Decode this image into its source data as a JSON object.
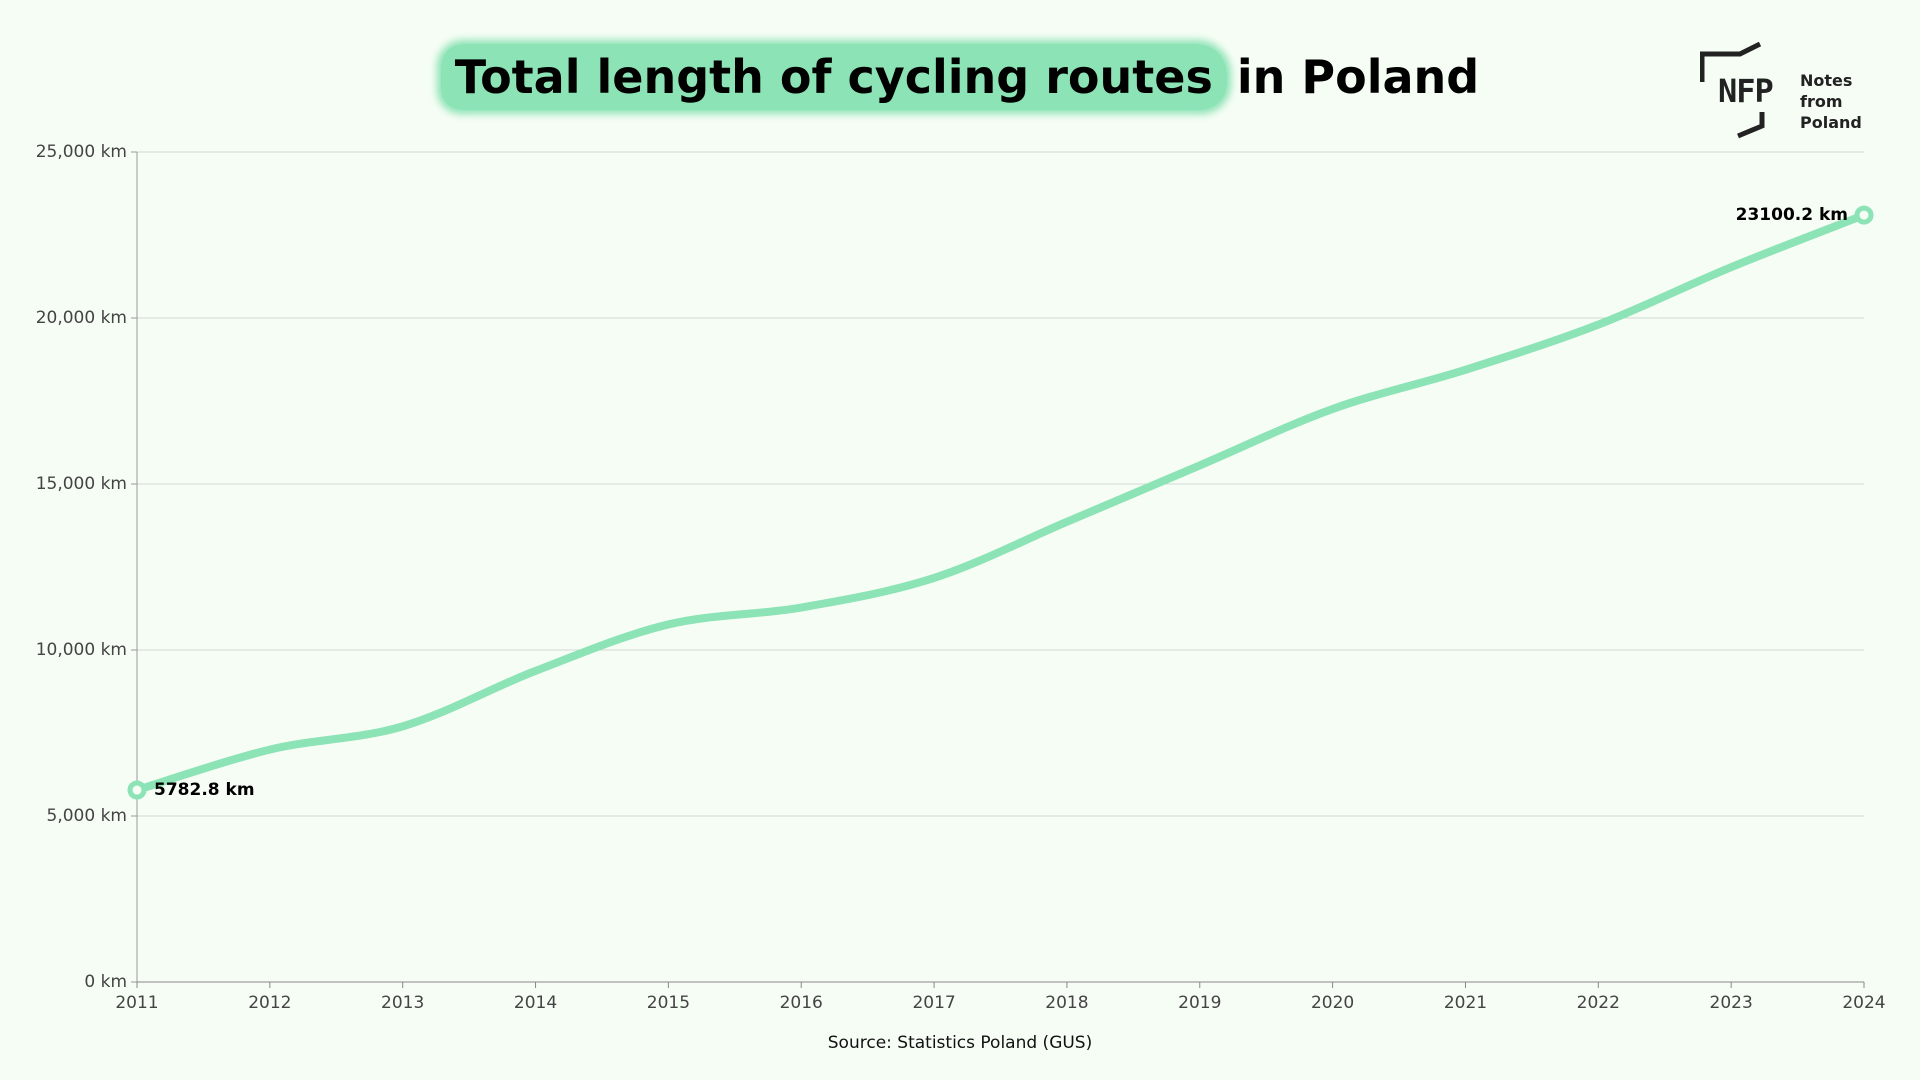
{
  "chart_data": {
    "type": "line",
    "title": [
      "Total length of cycling routes",
      "in Poland"
    ],
    "source": "Source: Statistics Poland (GUS)",
    "logo": {
      "mark": "NFP",
      "name": "Notes from Poland"
    },
    "x": [
      2011,
      2012,
      2013,
      2014,
      2015,
      2016,
      2017,
      2018,
      2019,
      2020,
      2021,
      2022,
      2023,
      2024
    ],
    "values": [
      5782.8,
      7000,
      7700,
      9370,
      10770,
      11280,
      12170,
      13860,
      15560,
      17260,
      18440,
      19800,
      21530,
      23100.2
    ],
    "value_labels": [
      "5782.8 km",
      null,
      null,
      null,
      null,
      null,
      null,
      null,
      null,
      null,
      null,
      null,
      null,
      "23100.2 km"
    ],
    "color": "#8ce3b5",
    "xlim": [
      2011,
      2024
    ],
    "xticks": [
      2011,
      2012,
      2013,
      2014,
      2015,
      2016,
      2017,
      2018,
      2019,
      2020,
      2021,
      2022,
      2023,
      2024
    ],
    "ylim": [
      0,
      25000
    ],
    "yticks": [
      {
        "value": 0,
        "label": "0 km"
      },
      {
        "value": 5000,
        "label": "5,000 km"
      },
      {
        "value": 10000,
        "label": "10,000 km"
      },
      {
        "value": 15000,
        "label": "15,000 km"
      },
      {
        "value": 20000,
        "label": "20,000 km"
      },
      {
        "value": 25000,
        "label": "25,000 km"
      }
    ],
    "grid": true
  }
}
